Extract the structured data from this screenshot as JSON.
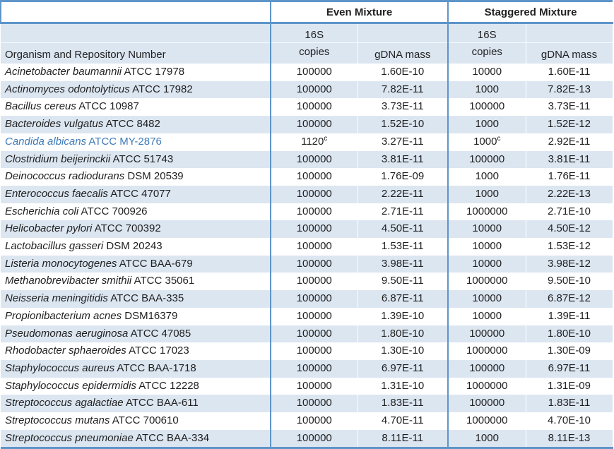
{
  "table": {
    "colors": {
      "border_blue": "#5E94C8",
      "stripe": "#DCE6F1",
      "text": "#1F1F1F",
      "highlight_text": "#3E7AB8"
    },
    "group_headers": {
      "even": "Even Mixture",
      "staggered": "Staggered Mixture"
    },
    "column_headers": {
      "organism": "Organism and Repository Number",
      "copies_line1": "16S",
      "copies_line2": "copies",
      "gdna": "gDNA mass"
    },
    "rows": [
      {
        "name": "Acinetobacter baumannii",
        "strain": "ATCC 17978",
        "even_copies": "100000",
        "even_copies_sup": "",
        "even_gdna": "1.60E-10",
        "stag_copies": "10000",
        "stag_copies_sup": "",
        "stag_gdna": "1.60E-11",
        "highlight": false
      },
      {
        "name": "Actinomyces odontolyticus",
        "strain": "ATCC 17982",
        "even_copies": "100000",
        "even_copies_sup": "",
        "even_gdna": "7.82E-11",
        "stag_copies": "1000",
        "stag_copies_sup": "",
        "stag_gdna": "7.82E-13",
        "highlight": false
      },
      {
        "name": "Bacillus cereus",
        "strain": "ATCC 10987",
        "even_copies": "100000",
        "even_copies_sup": "",
        "even_gdna": "3.73E-11",
        "stag_copies": "100000",
        "stag_copies_sup": "",
        "stag_gdna": "3.73E-11",
        "highlight": false
      },
      {
        "name": "Bacteroides vulgatus",
        "strain": "ATCC 8482",
        "even_copies": "100000",
        "even_copies_sup": "",
        "even_gdna": "1.52E-10",
        "stag_copies": "1000",
        "stag_copies_sup": "",
        "stag_gdna": "1.52E-12",
        "highlight": false
      },
      {
        "name": "Candida albicans",
        "strain": "ATCC MY-2876",
        "even_copies": "1120",
        "even_copies_sup": "c",
        "even_gdna": "3.27E-11",
        "stag_copies": "1000",
        "stag_copies_sup": "c",
        "stag_gdna": "2.92E-11",
        "highlight": true
      },
      {
        "name": "Clostridium beijerinckii",
        "strain": "ATCC 51743",
        "even_copies": "100000",
        "even_copies_sup": "",
        "even_gdna": "3.81E-11",
        "stag_copies": "100000",
        "stag_copies_sup": "",
        "stag_gdna": "3.81E-11",
        "highlight": false
      },
      {
        "name": "Deinococcus radiodurans",
        "strain": "DSM 20539",
        "even_copies": "100000",
        "even_copies_sup": "",
        "even_gdna": "1.76E-09",
        "stag_copies": "1000",
        "stag_copies_sup": "",
        "stag_gdna": "1.76E-11",
        "highlight": false
      },
      {
        "name": "Enterococcus faecalis",
        "strain": "ATCC 47077",
        "even_copies": "100000",
        "even_copies_sup": "",
        "even_gdna": "2.22E-11",
        "stag_copies": "1000",
        "stag_copies_sup": "",
        "stag_gdna": "2.22E-13",
        "highlight": false
      },
      {
        "name": "Escherichia coli",
        "strain": "ATCC 700926",
        "even_copies": "100000",
        "even_copies_sup": "",
        "even_gdna": "2.71E-11",
        "stag_copies": "1000000",
        "stag_copies_sup": "",
        "stag_gdna": "2.71E-10",
        "highlight": false
      },
      {
        "name": "Helicobacter pylori",
        "strain": "ATCC 700392",
        "even_copies": "100000",
        "even_copies_sup": "",
        "even_gdna": "4.50E-11",
        "stag_copies": "10000",
        "stag_copies_sup": "",
        "stag_gdna": "4.50E-12",
        "highlight": false
      },
      {
        "name": "Lactobacillus gasseri",
        "strain": "DSM 20243",
        "even_copies": "100000",
        "even_copies_sup": "",
        "even_gdna": "1.53E-11",
        "stag_copies": "10000",
        "stag_copies_sup": "",
        "stag_gdna": "1.53E-12",
        "highlight": false
      },
      {
        "name": "Listeria monocytogenes",
        "strain": "ATCC BAA-679",
        "even_copies": "100000",
        "even_copies_sup": "",
        "even_gdna": "3.98E-11",
        "stag_copies": "10000",
        "stag_copies_sup": "",
        "stag_gdna": "3.98E-12",
        "highlight": false
      },
      {
        "name": "Methanobrevibacter smithii",
        "strain": "ATCC 35061",
        "even_copies": "100000",
        "even_copies_sup": "",
        "even_gdna": "9.50E-11",
        "stag_copies": "1000000",
        "stag_copies_sup": "",
        "stag_gdna": "9.50E-10",
        "highlight": false
      },
      {
        "name": "Neisseria meningitidis",
        "strain": "ATCC BAA-335",
        "even_copies": "100000",
        "even_copies_sup": "",
        "even_gdna": "6.87E-11",
        "stag_copies": "10000",
        "stag_copies_sup": "",
        "stag_gdna": "6.87E-12",
        "highlight": false
      },
      {
        "name": "Propionibacterium acnes",
        "strain": "DSM16379",
        "even_copies": "100000",
        "even_copies_sup": "",
        "even_gdna": "1.39E-10",
        "stag_copies": "10000",
        "stag_copies_sup": "",
        "stag_gdna": "1.39E-11",
        "highlight": false
      },
      {
        "name": "Pseudomonas aeruginosa",
        "strain": "ATCC 47085",
        "even_copies": "100000",
        "even_copies_sup": "",
        "even_gdna": "1.80E-10",
        "stag_copies": "100000",
        "stag_copies_sup": "",
        "stag_gdna": "1.80E-10",
        "highlight": false
      },
      {
        "name": "Rhodobacter sphaeroides",
        "strain": "ATCC 17023",
        "even_copies": "100000",
        "even_copies_sup": "",
        "even_gdna": "1.30E-10",
        "stag_copies": "1000000",
        "stag_copies_sup": "",
        "stag_gdna": "1.30E-09",
        "highlight": false
      },
      {
        "name": "Staphylococcus aureus",
        "strain": "ATCC BAA-1718",
        "even_copies": "100000",
        "even_copies_sup": "",
        "even_gdna": "6.97E-11",
        "stag_copies": "100000",
        "stag_copies_sup": "",
        "stag_gdna": "6.97E-11",
        "highlight": false
      },
      {
        "name": "Staphylococcus epidermidis",
        "strain": "ATCC 12228",
        "even_copies": "100000",
        "even_copies_sup": "",
        "even_gdna": "1.31E-10",
        "stag_copies": "1000000",
        "stag_copies_sup": "",
        "stag_gdna": "1.31E-09",
        "highlight": false
      },
      {
        "name": "Streptococcus agalactiae",
        "strain": "ATCC BAA-611",
        "even_copies": "100000",
        "even_copies_sup": "",
        "even_gdna": "1.83E-11",
        "stag_copies": "100000",
        "stag_copies_sup": "",
        "stag_gdna": "1.83E-11",
        "highlight": false
      },
      {
        "name": "Streptococcus mutans",
        "strain": "ATCC 700610",
        "even_copies": "100000",
        "even_copies_sup": "",
        "even_gdna": "4.70E-11",
        "stag_copies": "1000000",
        "stag_copies_sup": "",
        "stag_gdna": "4.70E-10",
        "highlight": false
      },
      {
        "name": "Streptococcus pneumoniae",
        "strain": "ATCC BAA-334",
        "even_copies": "100000",
        "even_copies_sup": "",
        "even_gdna": "8.11E-11",
        "stag_copies": "1000",
        "stag_copies_sup": "",
        "stag_gdna": "8.11E-13",
        "highlight": false
      }
    ]
  }
}
